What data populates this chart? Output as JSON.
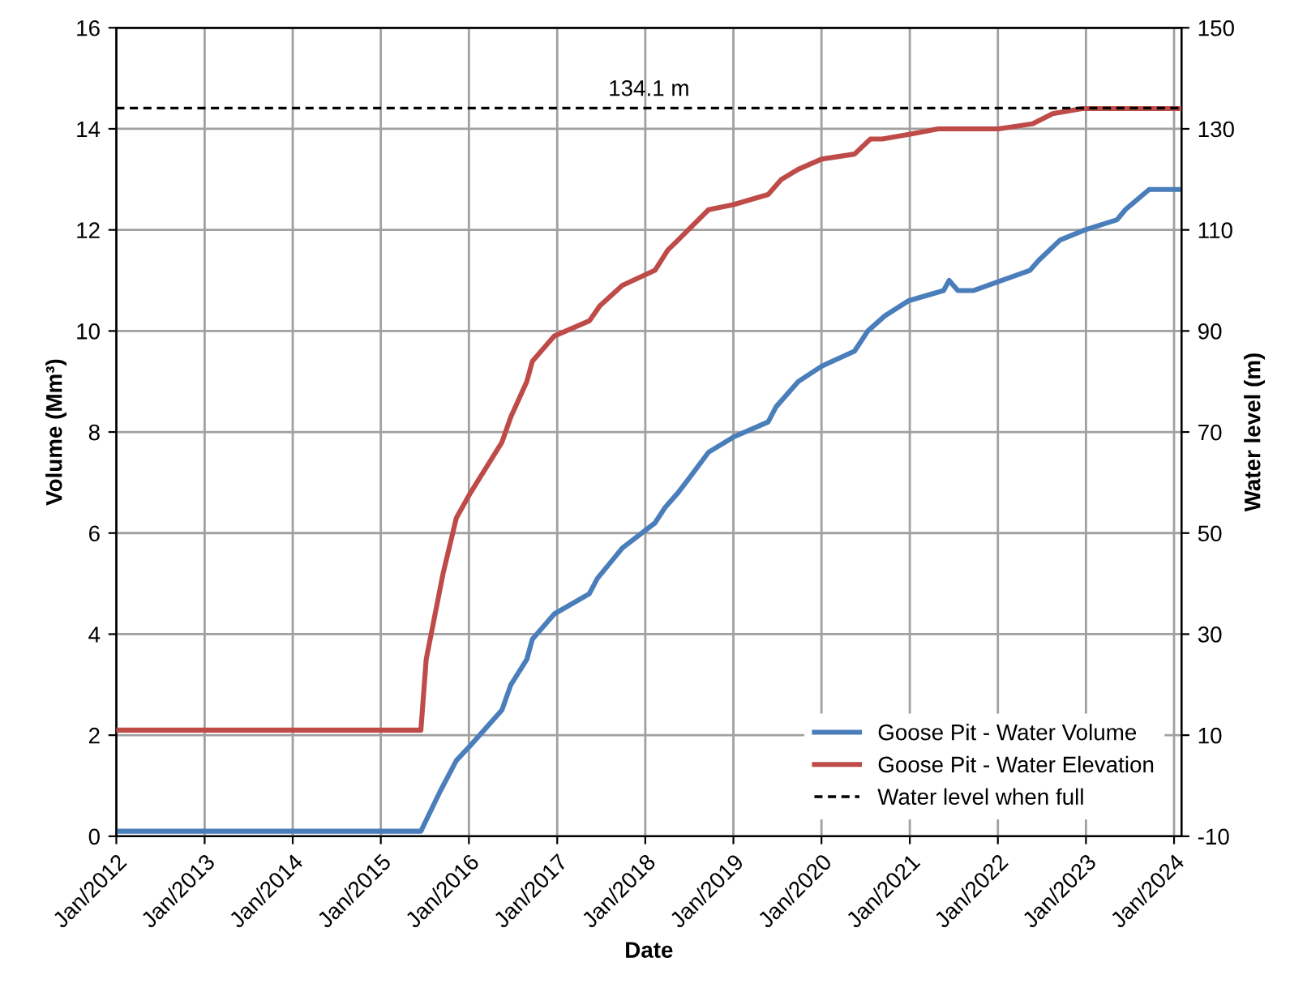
{
  "chart_data": {
    "type": "line",
    "xlabel": "Date",
    "ylabel": "Volume (Mm³)",
    "y2label": "Water level (m)",
    "xlim": [
      "2012-01-01",
      "2024-02-01"
    ],
    "xticks": [
      {
        "value": "2012-01-01",
        "label": "Jan/2012"
      },
      {
        "value": "2013-01-01",
        "label": "Jan/2013"
      },
      {
        "value": "2014-01-01",
        "label": "Jan/2014"
      },
      {
        "value": "2015-01-01",
        "label": "Jan/2015"
      },
      {
        "value": "2016-01-01",
        "label": "Jan/2016"
      },
      {
        "value": "2017-01-01",
        "label": "Jan/2017"
      },
      {
        "value": "2018-01-01",
        "label": "Jan/2018"
      },
      {
        "value": "2019-01-01",
        "label": "Jan/2019"
      },
      {
        "value": "2020-01-01",
        "label": "Jan/2020"
      },
      {
        "value": "2021-01-01",
        "label": "Jan/2021"
      },
      {
        "value": "2022-01-01",
        "label": "Jan/2022"
      },
      {
        "value": "2023-01-01",
        "label": "Jan/2023"
      },
      {
        "value": "2024-01-01",
        "label": "Jan/2024"
      }
    ],
    "ylim": [
      0,
      16
    ],
    "yticks": [
      0,
      2,
      4,
      6,
      8,
      10,
      12,
      14,
      16
    ],
    "y2lim": [
      -10,
      150
    ],
    "y2ticks": [
      -10,
      10,
      30,
      50,
      70,
      90,
      110,
      130,
      150
    ],
    "grid": true,
    "legend": "bottom right",
    "marker": "none",
    "annotations": [
      "134.1 m"
    ],
    "series": [
      {
        "name": "Goose Pit - Water Volume",
        "color": "#4a7ebb",
        "x": [
          "2012-01-01",
          "2015-06-16",
          "2015-09-05",
          "2015-11-10",
          "2016-01-08",
          "2016-05-17",
          "2016-06-23",
          "2016-08-28",
          "2016-09-20",
          "2016-12-20",
          "2017-05-14",
          "2017-06-16",
          "2017-09-27",
          "2018-02-10",
          "2018-03-23",
          "2018-05-17",
          "2018-07-04",
          "2018-09-20",
          "2019-01-01",
          "2019-05-25",
          "2019-06-27",
          "2019-09-27",
          "2020-01-01",
          "2020-05-17",
          "2020-07-11",
          "2020-09-20",
          "2020-12-28",
          "2021-05-21",
          "2021-06-13",
          "2021-07-19",
          "2021-09-23",
          "2022-05-14",
          "2022-06-20",
          "2022-09-16",
          "2022-12-28",
          "2023-05-10",
          "2023-06-13",
          "2023-09-20",
          "2024-01-22"
        ],
        "values": [
          0.1,
          0.1,
          0.9,
          1.5,
          1.8,
          2.5,
          3.0,
          3.5,
          3.9,
          4.4,
          4.8,
          5.1,
          5.7,
          6.2,
          6.5,
          6.8,
          7.1,
          7.6,
          7.9,
          8.2,
          8.5,
          9.0,
          9.3,
          9.6,
          10.0,
          10.3,
          10.6,
          10.8,
          11.0,
          10.8,
          10.8,
          11.2,
          11.4,
          11.8,
          12.0,
          12.2,
          12.4,
          12.8,
          12.8
        ]
      },
      {
        "name": "Goose Pit - Water Elevation",
        "color": "#be4b48",
        "axis": "y2",
        "x": [
          "2012-01-01",
          "2015-06-16",
          "2015-07-08",
          "2015-09-16",
          "2015-11-10",
          "2016-01-08",
          "2016-05-17",
          "2016-06-23",
          "2016-08-28",
          "2016-09-20",
          "2016-12-20",
          "2017-05-14",
          "2017-06-27",
          "2017-09-27",
          "2018-02-10",
          "2018-04-04",
          "2018-05-17",
          "2018-09-20",
          "2019-01-01",
          "2019-05-25",
          "2019-07-19",
          "2019-09-27",
          "2020-01-01",
          "2020-05-17",
          "2020-07-22",
          "2020-09-09",
          "2021-01-08",
          "2021-04-29",
          "2021-06-13",
          "2021-08-10",
          "2022-01-04",
          "2022-05-25",
          "2022-08-16",
          "2022-12-16",
          "2023-06-13",
          "2023-09-10",
          "2024-01-22"
        ],
        "values": [
          11,
          11,
          25,
          42,
          53,
          58,
          68,
          73,
          80,
          84,
          89,
          92,
          95,
          99,
          102,
          106,
          108,
          114,
          115,
          117,
          120,
          122,
          124,
          125,
          128,
          128,
          129,
          130,
          130,
          130,
          130,
          131,
          133,
          134,
          134,
          134,
          134
        ]
      },
      {
        "name": "Water level when full",
        "color": "#000000",
        "axis": "y2",
        "line_style": "dashed",
        "x": [
          "2012-01-01",
          "2024-02-01"
        ],
        "values": [
          134.1,
          134.1
        ]
      }
    ]
  }
}
